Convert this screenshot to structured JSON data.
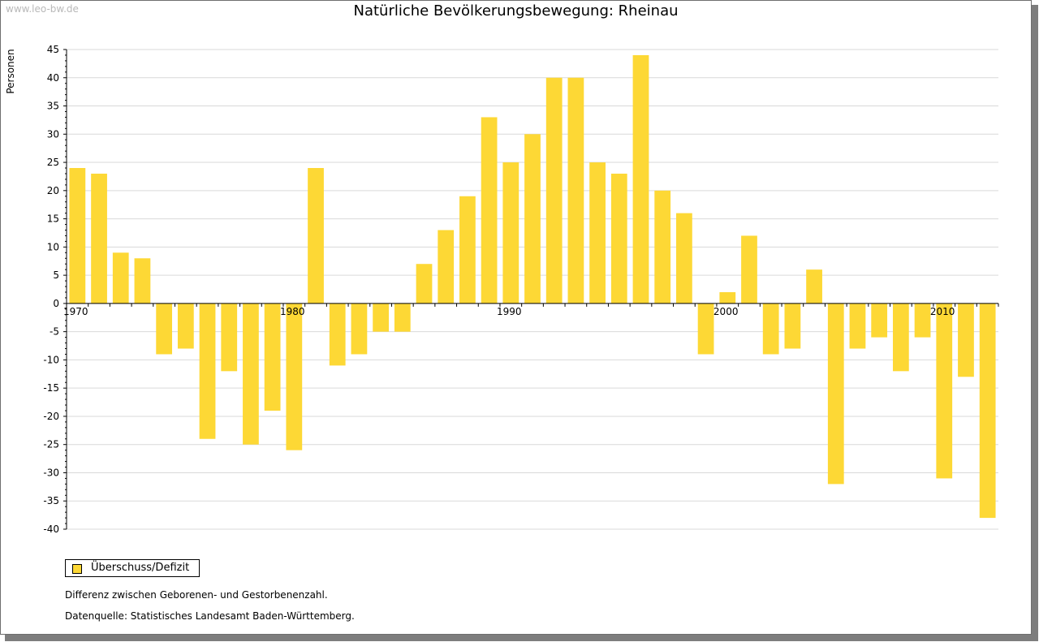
{
  "watermark": "www.leo-bw.de",
  "colors": {
    "bar": "#fdd835",
    "grid": "#d9d9d9",
    "axis": "#000000"
  },
  "chart_data": {
    "type": "bar",
    "title": "Natürliche Bevölkerungsbewegung: Rheinau",
    "ylabel": "Personen",
    "xlabel": "",
    "ylim": [
      -40,
      45
    ],
    "ytick_step": 5,
    "grid": true,
    "legend_position": "bottom-left",
    "x_tick_labels": [
      "1970",
      "1980",
      "1990",
      "2000",
      "2010"
    ],
    "x": [
      1970,
      1971,
      1972,
      1973,
      1974,
      1975,
      1976,
      1977,
      1978,
      1979,
      1980,
      1981,
      1982,
      1983,
      1984,
      1985,
      1986,
      1987,
      1988,
      1989,
      1990,
      1991,
      1992,
      1993,
      1994,
      1995,
      1996,
      1997,
      1998,
      1999,
      2000,
      2001,
      2002,
      2003,
      2004,
      2005,
      2006,
      2007,
      2008,
      2009,
      2010,
      2011,
      2012
    ],
    "series": [
      {
        "name": "Überschuss/Defizit",
        "values": [
          24,
          23,
          9,
          8,
          -9,
          -8,
          -24,
          -12,
          -25,
          -19,
          -26,
          24,
          -11,
          -9,
          -5,
          -5,
          7,
          13,
          19,
          33,
          25,
          30,
          40,
          40,
          25,
          23,
          44,
          20,
          16,
          -9,
          2,
          12,
          -9,
          -8,
          6,
          -32,
          -8,
          -6,
          -12,
          -6,
          -31,
          -13,
          -38
        ]
      }
    ]
  },
  "notes": {
    "line1": "Differenz zwischen Geborenen- und Gestorbenenzahl.",
    "line2": "Datenquelle: Statistisches Landesamt Baden-Württemberg."
  }
}
